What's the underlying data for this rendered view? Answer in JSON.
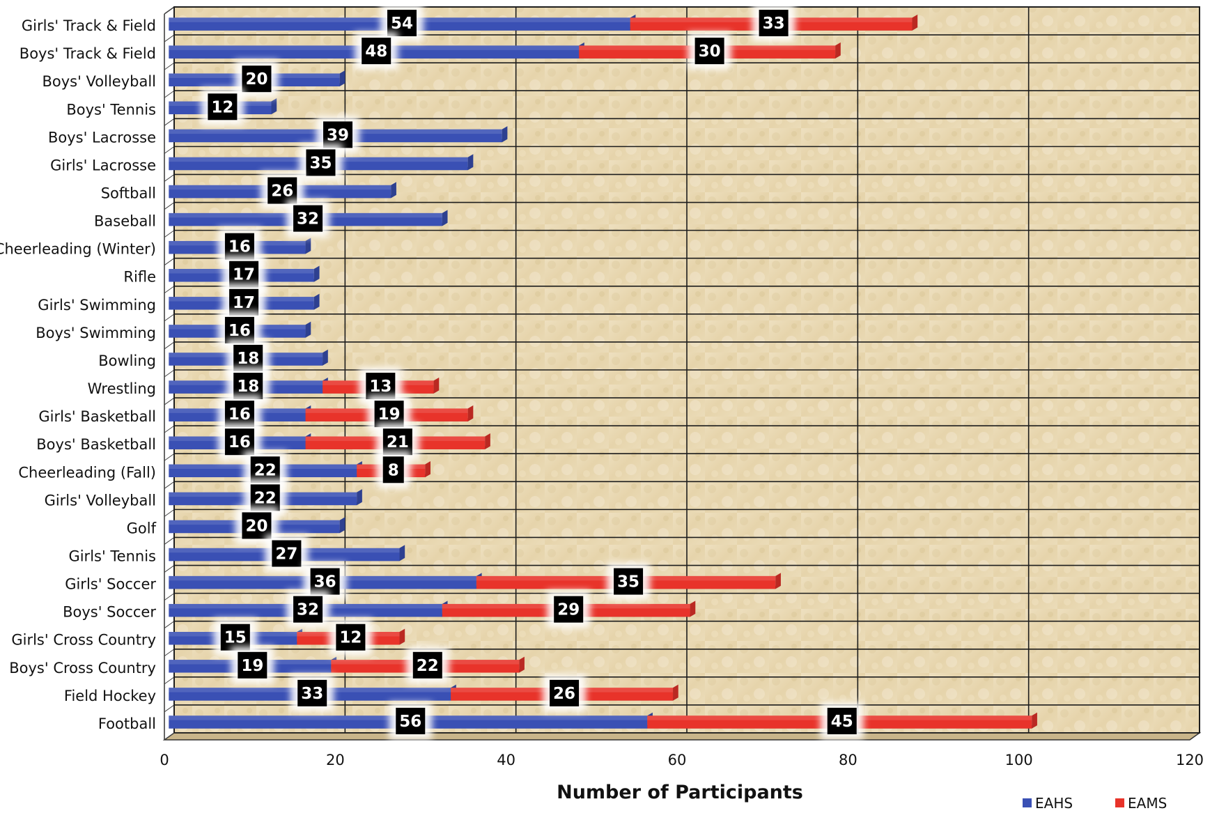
{
  "chart_data": {
    "type": "bar",
    "orientation": "horizontal",
    "stacked": true,
    "categories": [
      "Girls' Track & Field",
      "Boys' Track & Field",
      "Boys' Volleyball",
      "Boys' Tennis",
      "Boys' Lacrosse",
      "Girls' Lacrosse",
      "Softball",
      "Baseball",
      "Cheerleading (Winter)",
      "Rifle",
      "Girls' Swimming",
      "Boys' Swimming",
      "Bowling",
      "Wrestling",
      "Girls' Basketball",
      "Boys' Basketball",
      "Cheerleading (Fall)",
      "Girls' Volleyball",
      "Golf",
      "Girls' Tennis",
      "Girls' Soccer",
      "Boys' Soccer",
      "Girls' Cross Country",
      "Boys' Cross Country",
      "Field Hockey",
      "Football"
    ],
    "series": [
      {
        "name": "EAHS",
        "color": "#3a50b4",
        "values": [
          54,
          48,
          20,
          12,
          39,
          35,
          26,
          32,
          16,
          17,
          17,
          16,
          18,
          18,
          16,
          16,
          22,
          22,
          20,
          27,
          36,
          32,
          15,
          19,
          33,
          56
        ]
      },
      {
        "name": "EAMS",
        "color": "#e8332a",
        "values": [
          33,
          30,
          null,
          null,
          null,
          null,
          null,
          null,
          null,
          null,
          null,
          null,
          null,
          13,
          19,
          21,
          8,
          null,
          null,
          null,
          35,
          29,
          12,
          22,
          26,
          45
        ]
      }
    ],
    "xlabel": "Number of Participants",
    "ylabel": "",
    "xlim": [
      0,
      120
    ],
    "xticks": [
      0,
      20,
      40,
      60,
      80,
      100,
      120
    ],
    "grid": true,
    "legend": "bottom-right"
  }
}
